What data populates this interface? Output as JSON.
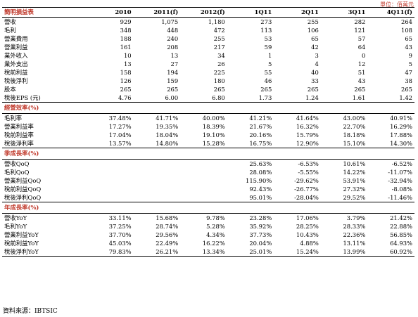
{
  "unit_note": "單位：佰萬元",
  "header": {
    "title": "簡明損益表",
    "periods": [
      "2010",
      "2011(f)",
      "2012(f)",
      "1Q11",
      "2Q11",
      "3Q11",
      "4Q11(f)"
    ]
  },
  "income_rows": [
    {
      "label": "營收",
      "values": [
        "929",
        "1,075",
        "1,180",
        "273",
        "255",
        "282",
        "264"
      ]
    },
    {
      "label": "毛利",
      "values": [
        "348",
        "448",
        "472",
        "113",
        "106",
        "121",
        "108"
      ]
    },
    {
      "label": "營業費用",
      "values": [
        "188",
        "240",
        "255",
        "53",
        "65",
        "57",
        "65"
      ]
    },
    {
      "label": "營業利益",
      "values": [
        "161",
        "208",
        "217",
        "59",
        "42",
        "64",
        "43"
      ]
    },
    {
      "label": "業外收入",
      "values": [
        "10",
        "13",
        "34",
        "1",
        "3",
        "0",
        "9"
      ]
    },
    {
      "label": "業外支出",
      "values": [
        "13",
        "27",
        "26",
        "5",
        "4",
        "12",
        "5"
      ]
    },
    {
      "label": "稅前利益",
      "values": [
        "158",
        "194",
        "225",
        "55",
        "40",
        "51",
        "47"
      ]
    },
    {
      "label": "稅後淨利",
      "values": [
        "126",
        "159",
        "180",
        "46",
        "33",
        "43",
        "38"
      ]
    },
    {
      "label": "股本",
      "values": [
        "265",
        "265",
        "265",
        "265",
        "265",
        "265",
        "265"
      ]
    },
    {
      "label": "稅後EPS (元)",
      "values": [
        "4.76",
        "6.00",
        "6.80",
        "1.73",
        "1.24",
        "1.61",
        "1.42"
      ]
    }
  ],
  "sections": [
    {
      "title": "經營效率(%)",
      "rows": [
        {
          "label": "毛利率",
          "values": [
            "37.48%",
            "41.71%",
            "40.00%",
            "41.21%",
            "41.64%",
            "43.00%",
            "40.91%"
          ]
        },
        {
          "label": "營業利益率",
          "values": [
            "17.27%",
            "19.35%",
            "18.39%",
            "21.67%",
            "16.32%",
            "22.70%",
            "16.29%"
          ]
        },
        {
          "label": "稅前利益率",
          "values": [
            "17.04%",
            "18.04%",
            "19.10%",
            "20.16%",
            "15.79%",
            "18.18%",
            "17.88%"
          ]
        },
        {
          "label": "稅後淨利率",
          "values": [
            "13.57%",
            "14.80%",
            "15.28%",
            "16.75%",
            "12.90%",
            "15.10%",
            "14.30%"
          ]
        }
      ]
    },
    {
      "title": "季成長率(%)",
      "rows": [
        {
          "label": "營收QoQ",
          "values": [
            "",
            "",
            "",
            "25.63%",
            "-6.53%",
            "10.61%",
            "-6.52%"
          ]
        },
        {
          "label": "毛利QoQ",
          "values": [
            "",
            "",
            "",
            "28.08%",
            "-5.55%",
            "14.22%",
            "-11.07%"
          ]
        },
        {
          "label": "營業利益QoQ",
          "values": [
            "",
            "",
            "",
            "115.90%",
            "-29.62%",
            "53.91%",
            "-32.94%"
          ]
        },
        {
          "label": "稅前利益QoQ",
          "values": [
            "",
            "",
            "",
            "92.43%",
            "-26.77%",
            "27.32%",
            "-8.08%"
          ]
        },
        {
          "label": "稅後淨利QoQ",
          "values": [
            "",
            "",
            "",
            "95.01%",
            "-28.04%",
            "29.52%",
            "-11.46%"
          ]
        }
      ]
    },
    {
      "title": "年成長率(%)",
      "rows": [
        {
          "label": "營收YoY",
          "values": [
            "33.11%",
            "15.68%",
            "9.78%",
            "23.28%",
            "17.06%",
            "3.79%",
            "21.42%"
          ]
        },
        {
          "label": "毛利YoY",
          "values": [
            "37.25%",
            "28.74%",
            "5.28%",
            "35.92%",
            "28.25%",
            "28.33%",
            "22.88%"
          ]
        },
        {
          "label": "營業利益YoY",
          "values": [
            "37.70%",
            "29.56%",
            "4.34%",
            "37.73%",
            "10.43%",
            "22.36%",
            "56.85%"
          ]
        },
        {
          "label": "稅前利益YoY",
          "values": [
            "45.03%",
            "22.49%",
            "16.22%",
            "20.04%",
            "4.88%",
            "13.11%",
            "64.93%"
          ]
        },
        {
          "label": "稅後淨利YoY",
          "values": [
            "79.83%",
            "26.21%",
            "13.34%",
            "25.01%",
            "15.24%",
            "13.99%",
            "60.92%"
          ]
        }
      ]
    }
  ],
  "source": "資料來源：IBTSIC"
}
